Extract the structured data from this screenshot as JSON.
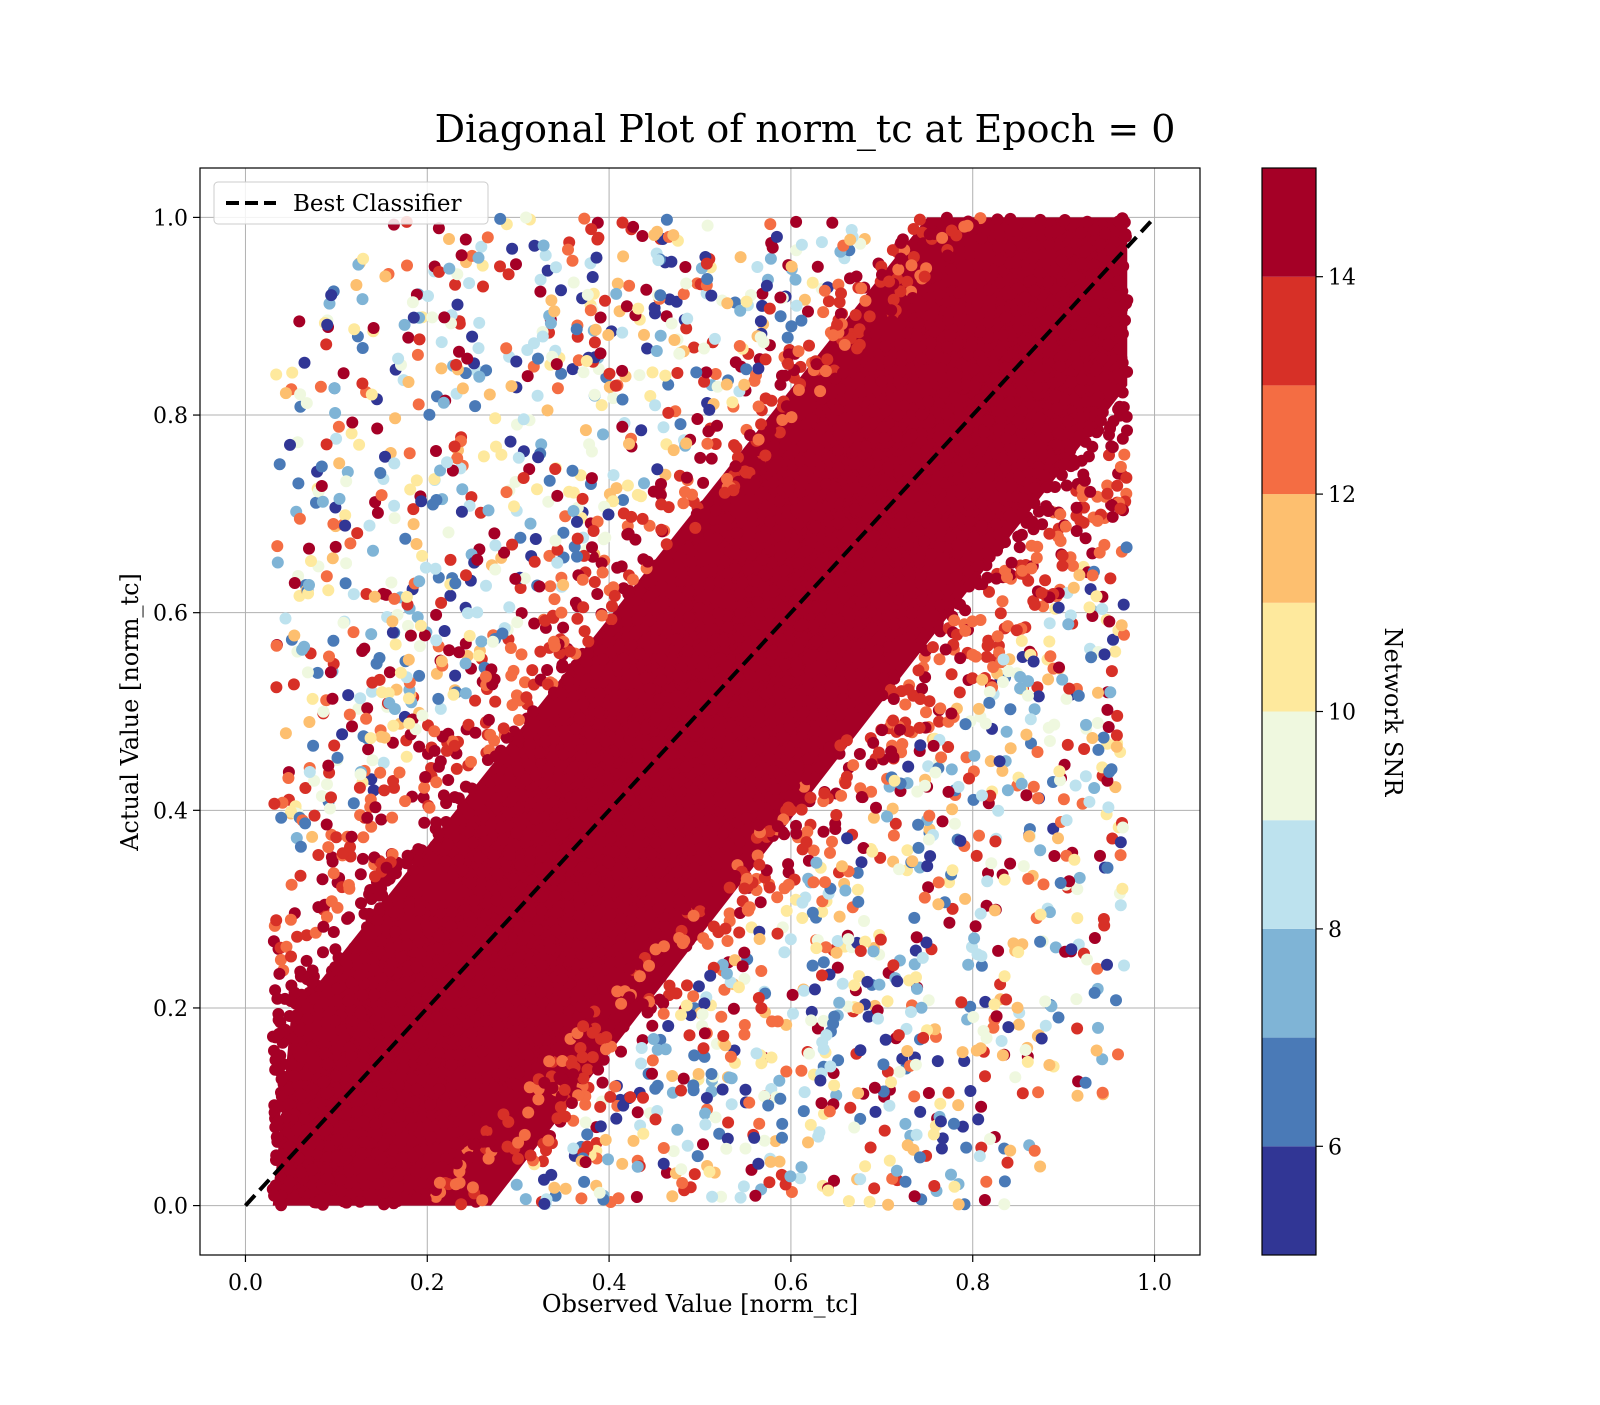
{
  "chart_data": {
    "type": "scatter",
    "title": "Diagonal Plot of norm_tc at Epoch = 0",
    "xlabel": "Observed Value [norm_tc]",
    "ylabel": "Actual Value [norm_tc]",
    "xlim": [
      -0.05,
      1.05
    ],
    "ylim": [
      -0.05,
      1.05
    ],
    "xticks": [
      "0.0",
      "0.2",
      "0.4",
      "0.6",
      "0.8",
      "1.0"
    ],
    "yticks": [
      "0.0",
      "0.2",
      "0.4",
      "0.6",
      "0.8",
      "1.0"
    ],
    "grid": true,
    "legend": {
      "placement": "top-left",
      "entries": [
        "Best Classifier"
      ]
    },
    "reference_line": {
      "name": "Best Classifier",
      "x": [
        0,
        1
      ],
      "y": [
        0,
        1
      ],
      "style": "dashed",
      "color": "#000000"
    },
    "colorbar": {
      "label": "Network SNR",
      "range": [
        5,
        15
      ],
      "ticks": [
        "6",
        "8",
        "10",
        "12",
        "14"
      ],
      "bins": [
        {
          "min": 5,
          "max": 6,
          "color": "#313695"
        },
        {
          "min": 6,
          "max": 7,
          "color": "#4a7ab7"
        },
        {
          "min": 7,
          "max": 8,
          "color": "#7fb4d6"
        },
        {
          "min": 8,
          "max": 9,
          "color": "#bde2ee"
        },
        {
          "min": 9,
          "max": 10,
          "color": "#eff8df"
        },
        {
          "min": 10,
          "max": 11,
          "color": "#fee99d"
        },
        {
          "min": 11,
          "max": 12,
          "color": "#fdbf6f"
        },
        {
          "min": 12,
          "max": 13,
          "color": "#f46d43"
        },
        {
          "min": 13,
          "max": 14,
          "color": "#d73027"
        },
        {
          "min": 14,
          "max": 15,
          "color": "#a50026"
        }
      ]
    },
    "scatter_description": {
      "points_color_by": "Network SNR",
      "x_range": [
        0.03,
        0.97
      ],
      "y_range": [
        0.0,
        1.0
      ],
      "dense_band_color": "#a50026",
      "dense_band_half_width": 0.22,
      "scattered_low_snr_regions": [
        "upper-left",
        "lower-right"
      ]
    }
  }
}
